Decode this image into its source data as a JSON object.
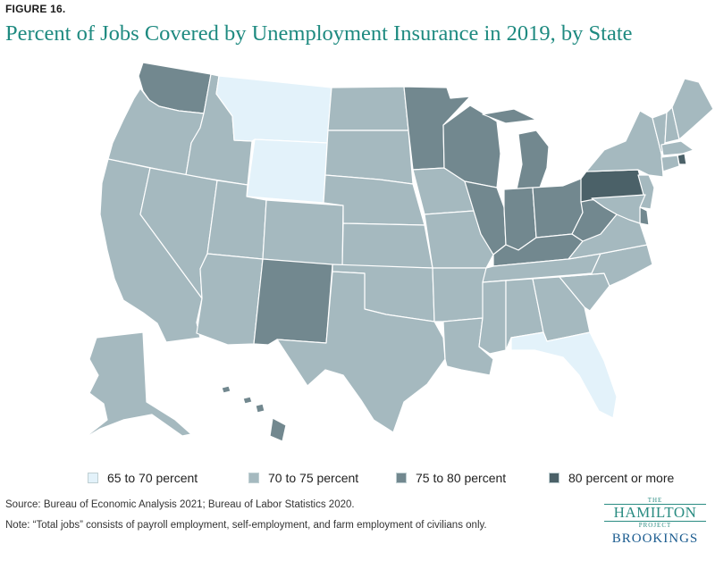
{
  "figure_label": "FIGURE 16.",
  "title": "Percent of Jobs Covered by Unemployment Insurance in 2019, by State",
  "legend": [
    {
      "key": "c1",
      "label": "65 to 70 percent",
      "color": "#e3f2fa"
    },
    {
      "key": "c2",
      "label": "70 to 75 percent",
      "color": "#a5b9bf"
    },
    {
      "key": "c3",
      "label": "75 to 80 percent",
      "color": "#72888f"
    },
    {
      "key": "c4",
      "label": "80 percent or more",
      "color": "#4b6168"
    }
  ],
  "states": {
    "WA": "c3",
    "OR": "c2",
    "CA": "c2",
    "ID": "c2",
    "NV": "c2",
    "MT": "c1",
    "WY": "c1",
    "UT": "c2",
    "AZ": "c2",
    "CO": "c2",
    "NM": "c3",
    "ND": "c2",
    "SD": "c2",
    "NE": "c2",
    "KS": "c2",
    "OK": "c2",
    "TX": "c2",
    "MN": "c3",
    "IA": "c2",
    "MO": "c2",
    "AR": "c2",
    "LA": "c2",
    "WI": "c3",
    "IL": "c3",
    "MI": "c3",
    "IN": "c3",
    "OH": "c3",
    "KY": "c3",
    "TN": "c2",
    "MS": "c2",
    "AL": "c2",
    "GA": "c2",
    "FL": "c1",
    "SC": "c2",
    "NC": "c2",
    "VA": "c2",
    "WV": "c3",
    "PA": "c4",
    "NY": "c2",
    "VT": "c2",
    "NH": "c2",
    "ME": "c2",
    "MA": "c2",
    "RI": "c4",
    "CT": "c2",
    "NJ": "c2",
    "DE": "c3",
    "MD": "c2",
    "AK": "c2",
    "HI": "c3"
  },
  "source": "Source:  Bureau of Economic Analysis 2021; Bureau of Labor Statistics 2020.",
  "note": "Note: “Total jobs” consists of payroll employment, self-employment, and farm employment of civilians only.",
  "logo": {
    "the": "THE",
    "hamilton": "HAMILTON",
    "project": "PROJECT",
    "brookings": "BROOKINGS"
  }
}
